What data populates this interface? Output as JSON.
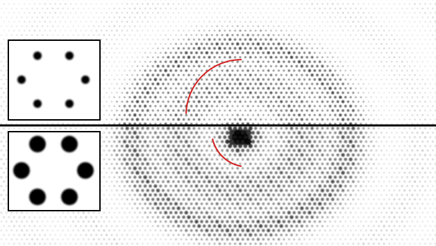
{
  "figure": {
    "background_color": "#ffffff",
    "spot_color": "#000000",
    "arc_color": "#d42020",
    "divider_color": "#000000",
    "top_half": {
      "lattice": "hexagonal",
      "spot_style": "sharp"
    },
    "bottom_half": {
      "lattice": "hexagonal",
      "spot_style": "blurred"
    }
  },
  "insets": [
    {
      "name": "top-inset",
      "pattern": "six-spot-hexagon",
      "spot_size": "small"
    },
    {
      "name": "bottom-inset",
      "pattern": "six-spot-hexagon",
      "spot_size": "large"
    }
  ]
}
